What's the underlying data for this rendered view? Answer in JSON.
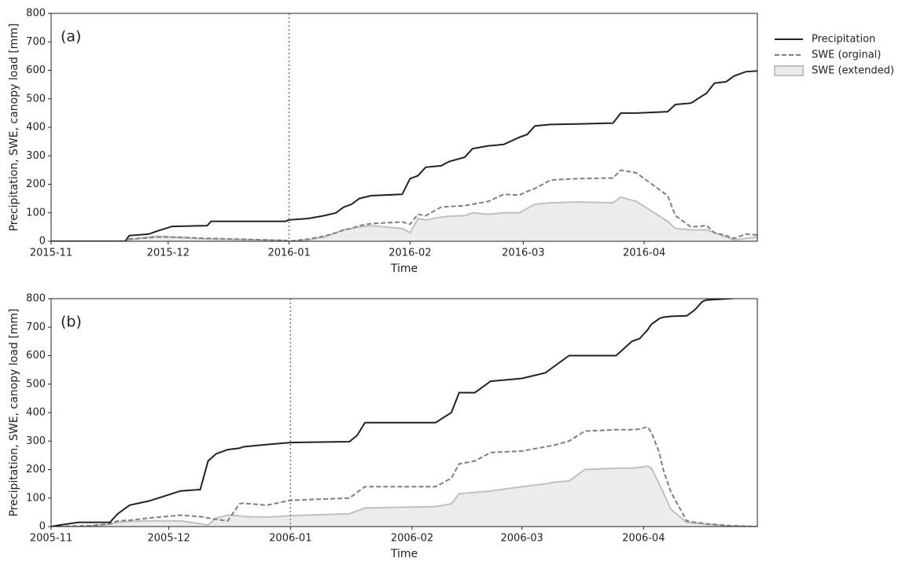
{
  "chart_data": [
    {
      "type": "line",
      "annotation": "(a)",
      "ylabel": "Precipitation, SWE, canopy load [mm]",
      "xlabel": "Time",
      "xlim": [
        0,
        181
      ],
      "xticks": [
        {
          "value": 0,
          "label": "2015-11"
        },
        {
          "value": 30,
          "label": "2015-12"
        },
        {
          "value": 61,
          "label": "2016-01"
        },
        {
          "value": 92,
          "label": "2016-02"
        },
        {
          "value": 121,
          "label": "2016-03"
        },
        {
          "value": 152,
          "label": "2016-04"
        }
      ],
      "ylim": [
        0,
        800
      ],
      "yticks": [
        0,
        100,
        200,
        300,
        400,
        500,
        600,
        700,
        800
      ],
      "vline": 61,
      "legend": "outside right",
      "x": [
        0,
        10,
        19,
        20,
        25,
        27,
        31,
        40,
        41,
        60,
        61,
        66,
        70,
        73,
        75,
        77,
        79,
        82,
        90,
        92,
        94,
        96,
        100,
        102,
        106,
        108,
        112,
        116,
        120,
        122,
        124,
        128,
        135,
        144,
        146,
        150,
        158,
        160,
        164,
        168,
        170,
        173,
        175,
        178,
        181
      ],
      "series": [
        {
          "name": "Precipitation",
          "color": "#222222",
          "style": "solid",
          "values": [
            0,
            0,
            0,
            20,
            25,
            35,
            52,
            55,
            70,
            70,
            75,
            80,
            90,
            100,
            120,
            130,
            150,
            160,
            165,
            220,
            230,
            260,
            265,
            280,
            295,
            325,
            335,
            340,
            365,
            375,
            405,
            410,
            412,
            415,
            450,
            450,
            455,
            480,
            485,
            520,
            555,
            560,
            580,
            595,
            598
          ]
        },
        {
          "name": "SWE (orginal)",
          "color": "#808080",
          "style": "dashed",
          "values": [
            0,
            0,
            0,
            8,
            12,
            15,
            15,
            10,
            10,
            3,
            0,
            8,
            18,
            30,
            40,
            45,
            55,
            62,
            68,
            60,
            95,
            90,
            120,
            122,
            125,
            130,
            140,
            165,
            162,
            175,
            185,
            215,
            220,
            222,
            250,
            240,
            160,
            90,
            50,
            55,
            30,
            20,
            10,
            25,
            22
          ]
        },
        {
          "name": "SWE (extended)",
          "color": "#c0c0c0",
          "fill": "#ececec",
          "style": "area",
          "values": [
            0,
            0,
            0,
            5,
            15,
            18,
            15,
            8,
            8,
            3,
            0,
            5,
            15,
            30,
            40,
            45,
            50,
            55,
            45,
            30,
            80,
            75,
            85,
            88,
            90,
            100,
            95,
            100,
            100,
            115,
            130,
            135,
            138,
            135,
            155,
            140,
            70,
            45,
            40,
            40,
            30,
            15,
            5,
            10,
            15
          ]
        }
      ]
    },
    {
      "type": "line",
      "annotation": "(b)",
      "ylabel": "Precipitation, SWE, canopy load [mm]",
      "xlabel": "Time",
      "xlim": [
        0,
        180
      ],
      "xticks": [
        {
          "value": 0,
          "label": "2005-11"
        },
        {
          "value": 30,
          "label": "2005-12"
        },
        {
          "value": 61,
          "label": "2006-01"
        },
        {
          "value": 92,
          "label": "2006-02"
        },
        {
          "value": 120,
          "label": "2006-03"
        },
        {
          "value": 151,
          "label": "2006-04"
        }
      ],
      "ylim": [
        0,
        800
      ],
      "yticks": [
        0,
        100,
        200,
        300,
        400,
        500,
        600,
        700,
        800
      ],
      "vline": 61,
      "x": [
        0,
        2,
        7,
        10,
        15,
        17,
        20,
        25,
        33,
        38,
        40,
        42,
        45,
        48,
        49,
        55,
        61,
        76,
        78,
        80,
        98,
        102,
        104,
        108,
        112,
        120,
        126,
        128,
        132,
        136,
        144,
        148,
        150,
        152,
        153,
        155,
        156,
        158,
        162,
        164,
        166,
        167,
        173,
        180
      ],
      "series": [
        {
          "color": "#222222",
          "style": "solid",
          "values": [
            0,
            5,
            15,
            15,
            15,
            45,
            75,
            90,
            125,
            130,
            230,
            255,
            270,
            275,
            280,
            288,
            295,
            298,
            320,
            365,
            365,
            400,
            470,
            470,
            510,
            520,
            540,
            560,
            600,
            600,
            600,
            650,
            660,
            690,
            710,
            730,
            735,
            738,
            740,
            760,
            790,
            795,
            800,
            810
          ]
        },
        {
          "color": "#808080",
          "style": "dashed",
          "values": [
            0,
            0,
            2,
            3,
            10,
            20,
            22,
            30,
            40,
            35,
            30,
            25,
            20,
            80,
            82,
            75,
            92,
            100,
            120,
            140,
            140,
            170,
            220,
            230,
            260,
            265,
            280,
            285,
            300,
            335,
            340,
            340,
            342,
            350,
            330,
            260,
            200,
            120,
            20,
            15,
            12,
            10,
            3,
            0
          ]
        },
        {
          "color": "#c0c0c0",
          "fill": "#ececec",
          "style": "area",
          "values": [
            0,
            0,
            0,
            2,
            8,
            15,
            18,
            20,
            20,
            10,
            5,
            30,
            40,
            38,
            35,
            33,
            38,
            45,
            55,
            65,
            70,
            80,
            115,
            120,
            125,
            140,
            150,
            155,
            160,
            200,
            205,
            205,
            208,
            212,
            205,
            150,
            120,
            60,
            15,
            12,
            10,
            8,
            2,
            0
          ]
        }
      ]
    }
  ]
}
